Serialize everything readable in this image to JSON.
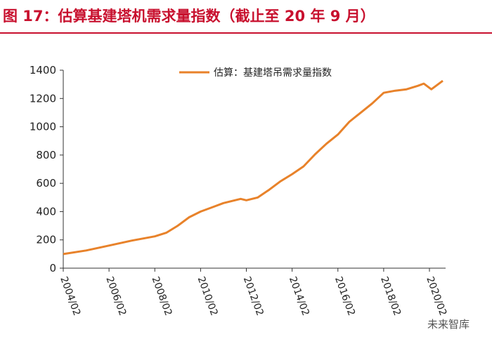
{
  "chart_data": {
    "type": "line",
    "title": "图 17：估算基建塔机需求量指数（截止至 20 年 9 月）",
    "x": [
      "2004/02",
      "2005/02",
      "2006/02",
      "2007/02",
      "2008/02",
      "2008/08",
      "2009/02",
      "2009/08",
      "2010/02",
      "2010/08",
      "2011/02",
      "2011/08",
      "2011/11",
      "2012/02",
      "2012/08",
      "2013/02",
      "2013/08",
      "2014/02",
      "2014/08",
      "2015/02",
      "2015/08",
      "2016/02",
      "2016/08",
      "2017/02",
      "2017/08",
      "2018/02",
      "2018/08",
      "2019/02",
      "2019/08",
      "2019/11",
      "2020/03",
      "2020/09"
    ],
    "series": [
      {
        "name": "估算：基建塔吊需求量指数",
        "color": "#e8822a",
        "values": [
          100,
          125,
          160,
          195,
          225,
          250,
          300,
          360,
          400,
          430,
          460,
          480,
          490,
          480,
          500,
          555,
          615,
          665,
          720,
          805,
          880,
          945,
          1035,
          1100,
          1165,
          1240,
          1255,
          1265,
          1290,
          1305,
          1265,
          1325
        ]
      }
    ],
    "ylim": [
      0,
      1400
    ],
    "yticks": [
      0,
      200,
      400,
      600,
      800,
      1000,
      1200,
      1400
    ],
    "xticks": [
      "2004/02",
      "2006/02",
      "2008/02",
      "2010/02",
      "2012/02",
      "2014/02",
      "2016/02",
      "2018/02",
      "2020/02"
    ],
    "legend": "top",
    "watermark": "未来智库"
  }
}
